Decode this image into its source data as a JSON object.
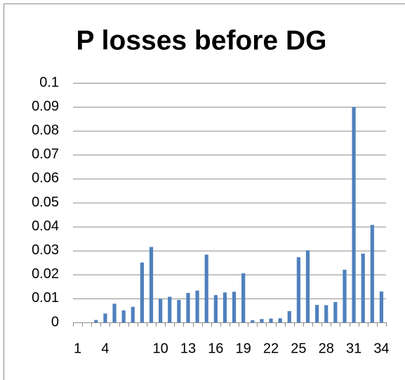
{
  "chart_data": {
    "type": "bar",
    "title": "P losses before DG",
    "categories": [
      "1",
      null,
      null,
      "4",
      null,
      null,
      null,
      null,
      null,
      "10",
      null,
      null,
      "13",
      null,
      null,
      "16",
      null,
      null,
      "19",
      null,
      null,
      "22",
      null,
      null,
      "25",
      null,
      null,
      "28",
      null,
      null,
      "31",
      null,
      null,
      "34"
    ],
    "values": [
      0,
      0,
      0.001,
      0.0037,
      0.0078,
      0.005,
      0.0065,
      0.025,
      0.0315,
      0.0098,
      0.0107,
      0.0094,
      0.0123,
      0.0133,
      0.0283,
      0.0114,
      0.0125,
      0.0128,
      0.0205,
      0.0009,
      0.0014,
      0.0016,
      0.0017,
      0.0047,
      0.0272,
      0.0301,
      0.0073,
      0.0072,
      0.0085,
      0.022,
      0.0899,
      0.0287,
      0.0407,
      0.0129
    ],
    "color": "#4f81bd",
    "ylim": [
      0,
      0.1
    ],
    "yticks": [
      0,
      0.01,
      0.02,
      0.03,
      0.04,
      0.05,
      0.06,
      0.07,
      0.08,
      0.09,
      0.1
    ],
    "grid": true
  }
}
